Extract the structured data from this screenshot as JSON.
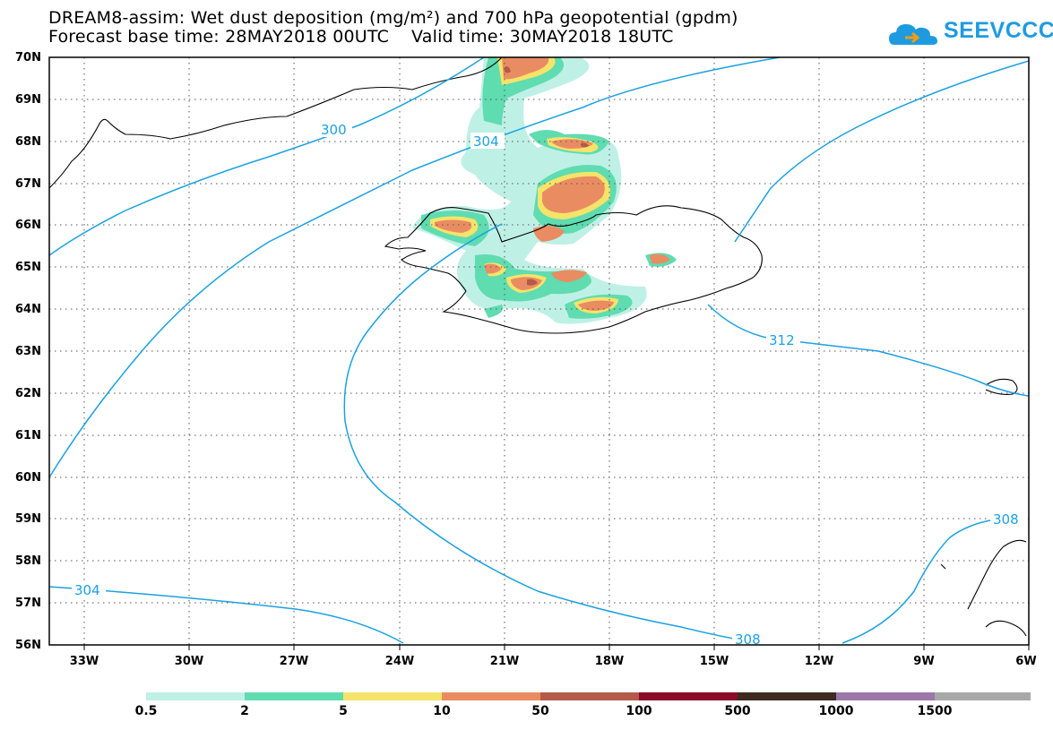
{
  "title": {
    "line1": "DREAM8-assim: Wet dust deposition (mg/m²) and 700 hPa geopotential (gpdm)",
    "line2": "Forecast base time: 28MAY2018 00UTC    Valid time: 30MAY2018 18UTC"
  },
  "logo": {
    "text": "SEEVCCC",
    "icon": "cloud-icon"
  },
  "map": {
    "projection": "lat-lon",
    "lon_range": [
      -34,
      -6
    ],
    "lat_range": [
      56,
      70
    ],
    "lat_labels": [
      "70N",
      "69N",
      "68N",
      "67N",
      "66N",
      "65N",
      "64N",
      "63N",
      "62N",
      "61N",
      "60N",
      "59N",
      "58N",
      "57N",
      "56N"
    ],
    "lon_labels": [
      "33W",
      "30W",
      "27W",
      "24W",
      "21W",
      "18W",
      "15W",
      "12W",
      "9W",
      "6W"
    ],
    "gridlines": "dotted",
    "contour_color": "#1ba1e2",
    "contour_labels": [
      "300",
      "304",
      "312",
      "308",
      "304",
      "308"
    ]
  },
  "colorbar": {
    "labels": [
      "0.5",
      "2",
      "5",
      "10",
      "50",
      "100",
      "500",
      "1000",
      "1500"
    ],
    "colors": [
      "#bff0e6",
      "#5fdcb0",
      "#f5e36a",
      "#ea8c62",
      "#b45a4a",
      "#8a0c28",
      "#3e2a1e",
      "#9b78a8",
      "#a8a8a8"
    ]
  }
}
